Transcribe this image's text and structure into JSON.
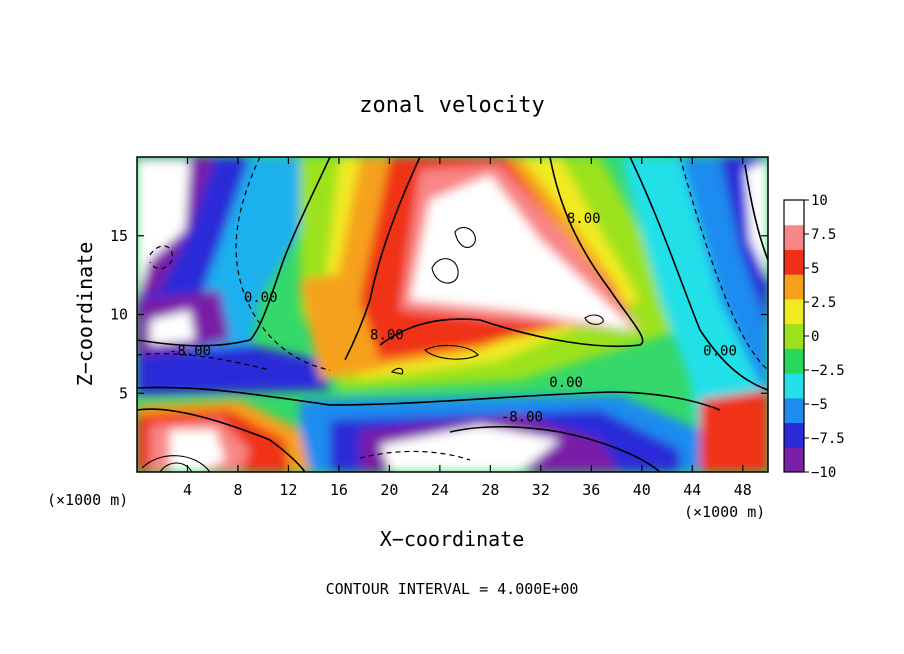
{
  "chart_data": {
    "type": "heatmap",
    "title": "zonal velocity",
    "xlabel": "X−coordinate",
    "ylabel": "Z−coordinate",
    "x_unit_left": "(×1000 m)",
    "x_unit_right": "(×1000 m)",
    "footer": "CONTOUR INTERVAL = 4.000E+00",
    "xlim": [
      0,
      50
    ],
    "ylim": [
      0,
      20
    ],
    "x_ticks": [
      4,
      8,
      12,
      16,
      20,
      24,
      28,
      32,
      36,
      40,
      44,
      48
    ],
    "x_tick_labels": [
      "4",
      "8",
      "12",
      "16",
      "20",
      "24",
      "28",
      "32",
      "36",
      "40",
      "44",
      "48"
    ],
    "y_ticks": [
      5,
      10,
      15
    ],
    "y_tick_labels": [
      "5",
      "10",
      "15"
    ],
    "colorbar": {
      "range": [
        -10,
        10
      ],
      "ticks": [
        10,
        7.5,
        5,
        2.5,
        0,
        -2.5,
        -5,
        -7.5,
        -10
      ],
      "tick_labels": [
        "10",
        "7.5",
        "5",
        "2.5",
        "0",
        "−2.5",
        "−5",
        "−7.5",
        "−10"
      ],
      "colors": [
        "#7a1fa8",
        "#2a2ad8",
        "#1f8cf0",
        "#24e0e8",
        "#28d85a",
        "#9ce21c",
        "#f2ea20",
        "#f6a11a",
        "#f03018",
        "#f88686",
        "#ffffff"
      ]
    },
    "contour_labels": [
      {
        "text": "0.00",
        "x": 9.8,
        "z": 10.8
      },
      {
        "text": "8.00",
        "x": 35.4,
        "z": 15.8
      },
      {
        "text": "-8.00",
        "x": 4.2,
        "z": 7.4
      },
      {
        "text": "8.00",
        "x": 19.8,
        "z": 8.4
      },
      {
        "text": "0.00",
        "x": 34.0,
        "z": 5.4
      },
      {
        "text": "-8.00",
        "x": 30.5,
        "z": 3.2
      },
      {
        "text": "0.00",
        "x": 46.2,
        "z": 7.4
      }
    ]
  }
}
